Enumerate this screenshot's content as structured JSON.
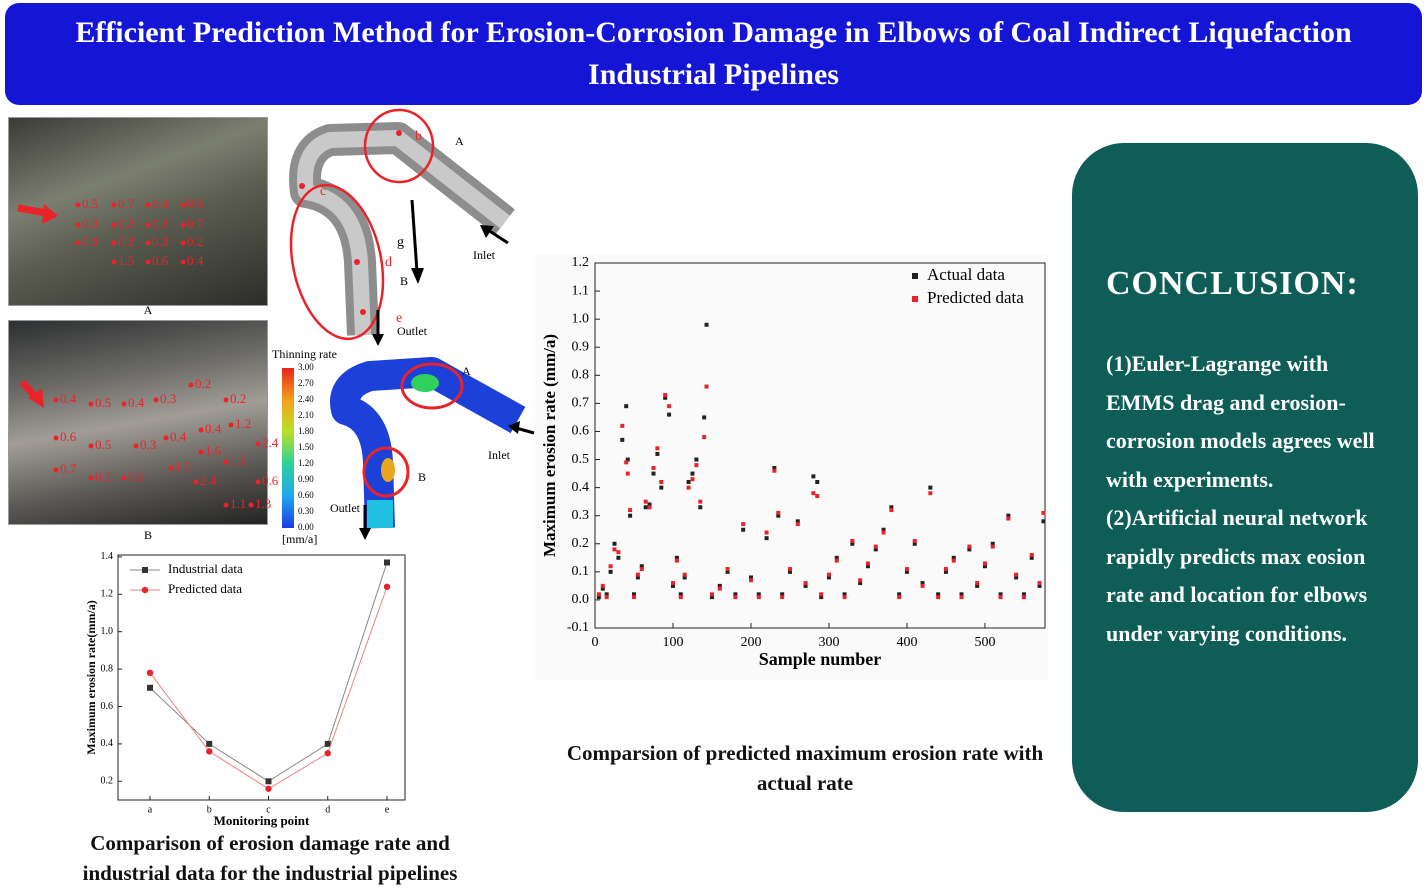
{
  "header": {
    "title": "Efficient Prediction Method for Erosion-Corrosion Damage in Elbows of Coal Indirect Liquefaction Industrial Pipelines"
  },
  "photos": [
    {
      "label": "A",
      "readings": [
        "0.5",
        "0.7",
        "0.4",
        "0.6",
        "0.3",
        "0.2",
        "0.3",
        "0.7",
        "0.9",
        "0.2",
        "0.3",
        "0.2",
        "1.5",
        "0.6",
        "0.4"
      ]
    },
    {
      "label": "B",
      "readings": [
        "0.4",
        "0.5",
        "0.4",
        "0.3",
        "0.2",
        "0.2",
        "0.6",
        "0.5",
        "0.3",
        "0.4",
        "0.4",
        "1.2",
        "0.7",
        "0.2",
        "0.6",
        "1.5",
        "1.6",
        "1.5",
        "2.4",
        "2.4",
        "0.6",
        "1.1",
        "1.3"
      ]
    }
  ],
  "pipe_model": {
    "labels": [
      "b",
      "A",
      "c",
      "g",
      "d",
      "B",
      "Inlet",
      "e",
      "Outlet"
    ]
  },
  "contour": {
    "title": "Thinning rate",
    "ticks": [
      "3.00",
      "2.70",
      "2.40",
      "2.10",
      "1.80",
      "1.50",
      "1.20",
      "0.90",
      "0.60",
      "0.30",
      "0.00"
    ],
    "unit": "[mm/a]",
    "labels": [
      "A",
      "B",
      "Inlet",
      "Outlet"
    ]
  },
  "chart_data": [
    {
      "type": "scatter",
      "caption": "Comparsion of predicted maximum erosion rate with actual rate",
      "x_label": "Sample number",
      "y_label": "Maximum erosion rate (mm/a)",
      "xlim": [
        0,
        577
      ],
      "ylim": [
        -0.1,
        1.2
      ],
      "xticks": [
        0,
        100,
        200,
        300,
        400,
        500
      ],
      "yticks": [
        -0.1,
        {
          "value": 0,
          "label": "0.0"
        },
        0.1,
        0.2,
        0.3,
        0.4,
        0.5,
        0.6,
        0.7,
        0.8,
        0.9,
        {
          "value": 1,
          "label": "1.0"
        },
        1.1,
        1.2
      ],
      "legend": "top-right",
      "x": [
        5,
        10,
        15,
        20,
        25,
        30,
        35,
        40,
        42,
        45,
        50,
        55,
        60,
        65,
        70,
        75,
        80,
        85,
        90,
        95,
        100,
        105,
        110,
        115,
        120,
        125,
        130,
        135,
        140,
        143,
        150,
        160,
        170,
        180,
        190,
        200,
        210,
        220,
        230,
        235,
        240,
        250,
        260,
        270,
        280,
        285,
        290,
        300,
        310,
        320,
        330,
        340,
        350,
        360,
        370,
        380,
        390,
        400,
        410,
        420,
        430,
        440,
        450,
        460,
        470,
        480,
        490,
        500,
        510,
        520,
        530,
        540,
        550,
        560,
        570,
        575
      ],
      "series": [
        {
          "name": "Actual data",
          "color": "#222222",
          "values": [
            0.01,
            0.04,
            0.02,
            0.1,
            0.2,
            0.15,
            0.57,
            0.69,
            0.5,
            0.3,
            0.02,
            0.08,
            0.12,
            0.33,
            0.34,
            0.45,
            0.52,
            0.4,
            0.72,
            0.66,
            0.05,
            0.15,
            0.02,
            0.08,
            0.42,
            0.45,
            0.5,
            0.33,
            0.65,
            0.98,
            0.01,
            0.05,
            0.1,
            0.02,
            0.25,
            0.08,
            0.02,
            0.22,
            0.47,
            0.3,
            0.02,
            0.1,
            0.28,
            0.05,
            0.44,
            0.42,
            0.01,
            0.08,
            0.15,
            0.02,
            0.2,
            0.06,
            0.12,
            0.18,
            0.25,
            0.33,
            0.02,
            0.1,
            0.2,
            0.06,
            0.4,
            0.02,
            0.1,
            0.15,
            0.02,
            0.18,
            0.05,
            0.12,
            0.2,
            0.02,
            0.3,
            0.08,
            0.02,
            0.15,
            0.05,
            0.28
          ]
        },
        {
          "name": "Predicted data",
          "color": "#e8242a",
          "values": [
            0.02,
            0.05,
            0.01,
            0.12,
            0.18,
            0.17,
            0.62,
            0.49,
            0.45,
            0.32,
            0.01,
            0.09,
            0.11,
            0.35,
            0.33,
            0.47,
            0.54,
            0.42,
            0.73,
            0.69,
            0.06,
            0.14,
            0.01,
            0.09,
            0.4,
            0.43,
            0.48,
            0.35,
            0.58,
            0.76,
            0.02,
            0.04,
            0.11,
            0.01,
            0.27,
            0.07,
            0.01,
            0.24,
            0.46,
            0.31,
            0.01,
            0.11,
            0.27,
            0.06,
            0.38,
            0.37,
            0.02,
            0.09,
            0.14,
            0.01,
            0.21,
            0.07,
            0.13,
            0.19,
            0.24,
            0.32,
            0.01,
            0.11,
            0.21,
            0.05,
            0.38,
            0.01,
            0.11,
            0.14,
            0.01,
            0.19,
            0.06,
            0.13,
            0.19,
            0.01,
            0.29,
            0.09,
            0.01,
            0.16,
            0.06,
            0.31
          ]
        }
      ]
    },
    {
      "type": "line",
      "caption": "Comparison of erosion damage rate and industrial data for the industrial pipelines",
      "x_label": "Monitoring point",
      "y_label": "Maximum erosion rate(mm/a)",
      "categories": [
        "a",
        "b",
        "c",
        "d",
        "e"
      ],
      "ylim": [
        0.1,
        1.41
      ],
      "yticks": [
        0.2,
        0.4,
        0.6,
        0.8,
        {
          "value": 1,
          "label": "1.0"
        },
        1.2,
        1.4
      ],
      "legend": "top-left",
      "series": [
        {
          "name": "Industrial data",
          "color": "#333333",
          "marker": "square",
          "values": [
            0.7,
            0.4,
            0.2,
            0.4,
            1.37
          ]
        },
        {
          "name": "Predicted data",
          "color": "#e8242a",
          "marker": "circle",
          "values": [
            0.78,
            0.36,
            0.16,
            0.35,
            1.24
          ]
        }
      ]
    }
  ],
  "conclusion": {
    "heading": "CONCLUSION:",
    "points": [
      "(1)Euler-Lagrange with EMMS drag and erosion-corrosion models agrees well with experiments.",
      "(2)Artificial neural network rapidly predicts max eosion rate and location for elbows under varying conditions."
    ]
  }
}
